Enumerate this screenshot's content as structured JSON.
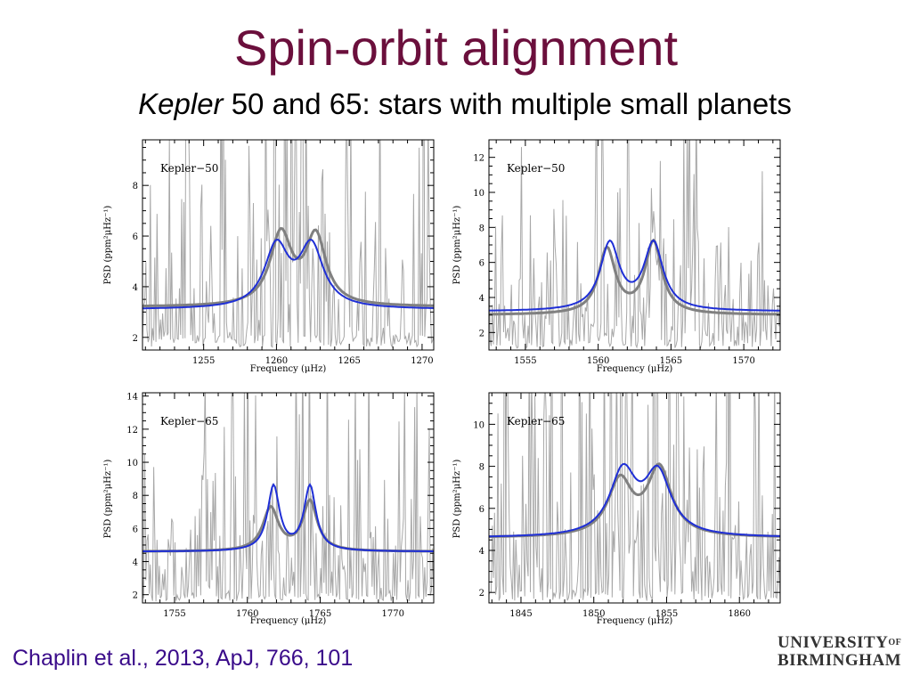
{
  "slide": {
    "title": "Spin-orbit alignment",
    "subtitle_italic": "Kepler",
    "subtitle_rest": " 50 and 65: stars with multiple small planets",
    "citation": "Chaplin et al., 2013, ApJ, 766, 101",
    "logo_line1": "UNIVERSITY",
    "logo_of": "OF",
    "logo_line2": "BIRMINGHAM"
  },
  "colors": {
    "title": "#6b0f3c",
    "citation": "#3a0b8a",
    "model_fit": "#1f2fd6",
    "smoothed": "#808080",
    "raw": "#a8a8a8"
  },
  "chart_data": [
    {
      "type": "line",
      "label": "Kepler−50",
      "xlabel": "Frequency (μHz)",
      "ylabel": "PSD (ppm²μHz⁻¹)",
      "xlim": [
        1250.8,
        1270.8
      ],
      "ylim": [
        1.5,
        9.8
      ],
      "xticks": [
        1255,
        1260,
        1265,
        1270
      ],
      "yticks": [
        2,
        4,
        6,
        8
      ],
      "fit": {
        "background": 3.1,
        "peaks": [
          {
            "center": 1260.0,
            "height": 2.4,
            "width": 2.0
          },
          {
            "center": 1262.4,
            "height": 2.4,
            "width": 2.0
          }
        ]
      },
      "smoothed": {
        "background": 3.2,
        "peaks": [
          {
            "center": 1260.3,
            "height": 2.8,
            "width": 1.8
          },
          {
            "center": 1262.7,
            "height": 2.7,
            "width": 1.7
          }
        ]
      }
    },
    {
      "type": "line",
      "label": "Kepler−50",
      "xlabel": "Frequency (μHz)",
      "ylabel": "PSD (ppm²μHz⁻¹)",
      "xlim": [
        1552.5,
        1572.5
      ],
      "ylim": [
        1.0,
        13.0
      ],
      "xticks": [
        1555,
        1560,
        1565,
        1570
      ],
      "yticks": [
        2,
        4,
        6,
        8,
        10,
        12
      ],
      "fit": {
        "background": 3.2,
        "peaks": [
          {
            "center": 1560.8,
            "height": 3.8,
            "width": 1.6
          },
          {
            "center": 1563.8,
            "height": 3.8,
            "width": 1.6
          }
        ]
      },
      "smoothed": {
        "background": 3.0,
        "peaks": [
          {
            "center": 1560.6,
            "height": 3.7,
            "width": 1.4
          },
          {
            "center": 1563.8,
            "height": 4.1,
            "width": 1.4
          }
        ]
      }
    },
    {
      "type": "line",
      "label": "Kepler−65",
      "xlabel": "Frequency (μHz)",
      "ylabel": "PSD (ppm²μHz⁻¹)",
      "xlim": [
        1752.8,
        1772.8
      ],
      "ylim": [
        1.5,
        14.2
      ],
      "xticks": [
        1755,
        1760,
        1765,
        1770
      ],
      "yticks": [
        2,
        4,
        6,
        8,
        10,
        12,
        14
      ],
      "fit": {
        "background": 4.6,
        "peaks": [
          {
            "center": 1761.8,
            "height": 3.9,
            "width": 1.0
          },
          {
            "center": 1764.3,
            "height": 3.9,
            "width": 1.0
          }
        ]
      },
      "smoothed": {
        "background": 4.6,
        "peaks": [
          {
            "center": 1761.6,
            "height": 2.6,
            "width": 1.3
          },
          {
            "center": 1764.3,
            "height": 3.0,
            "width": 1.2
          }
        ]
      }
    },
    {
      "type": "line",
      "label": "Kepler−65",
      "xlabel": "Frequency (μHz)",
      "ylabel": "PSD (ppm²μHz⁻¹)",
      "xlim": [
        1842.8,
        1862.8
      ],
      "ylim": [
        1.5,
        11.5
      ],
      "xticks": [
        1845,
        1850,
        1855,
        1860
      ],
      "yticks": [
        2,
        4,
        6,
        8,
        10
      ],
      "fit": {
        "background": 4.6,
        "peaks": [
          {
            "center": 1852.0,
            "height": 3.0,
            "width": 2.2
          },
          {
            "center": 1854.4,
            "height": 2.9,
            "width": 2.2
          }
        ]
      },
      "smoothed": {
        "background": 4.6,
        "peaks": [
          {
            "center": 1851.8,
            "height": 2.6,
            "width": 2.0
          },
          {
            "center": 1854.5,
            "height": 3.2,
            "width": 2.0
          }
        ]
      }
    }
  ]
}
